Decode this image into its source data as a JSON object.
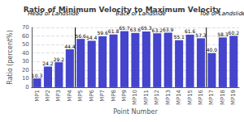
{
  "chart_data": {
    "type": "bar",
    "title": "Ratio of Minimum Velocity to Maximum Velocity",
    "xlabel": "Point Number",
    "ylabel": "Ratio (percent%)",
    "categories": [
      "MP1",
      "MP2",
      "MP3",
      "MP4",
      "MP5",
      "MP6",
      "MP7",
      "MP8",
      "MP9",
      "MP10",
      "MP11",
      "MP12",
      "MP13",
      "MP14",
      "MP15",
      "MP16",
      "MP17",
      "MP18",
      "MP19"
    ],
    "values": [
      10.3,
      24.2,
      29.2,
      44.4,
      56.6,
      54.4,
      59.6,
      61.8,
      65.7,
      63.6,
      65.3,
      63.2,
      63.9,
      55.1,
      61.6,
      57.3,
      40.0,
      58.3,
      60.2
    ],
    "value_labels": [
      "10.3",
      "24.2",
      "29.2",
      "44.4",
      "56.6",
      "54.4",
      "59.6",
      "61.8",
      "65.7",
      "63.6",
      "65.3",
      "63.2",
      "63.9",
      "55.1",
      "61.6",
      "57.3",
      "40.0",
      "58.3",
      "60.2"
    ],
    "color": "#4444cc",
    "ylim": [
      0,
      70
    ],
    "yticks": [
      0,
      10,
      20,
      30,
      40,
      50,
      60,
      70
    ],
    "grid": true,
    "data_labels": true,
    "annotations": [
      {
        "text": "Head of Landslide",
        "from": "MP1",
        "to": "MP4"
      },
      {
        "text": "Back of Landslide",
        "from": "MP5",
        "to": "MP16"
      },
      {
        "text": "Toe of Landslide",
        "from": "MP17",
        "to": "MP19"
      }
    ]
  }
}
